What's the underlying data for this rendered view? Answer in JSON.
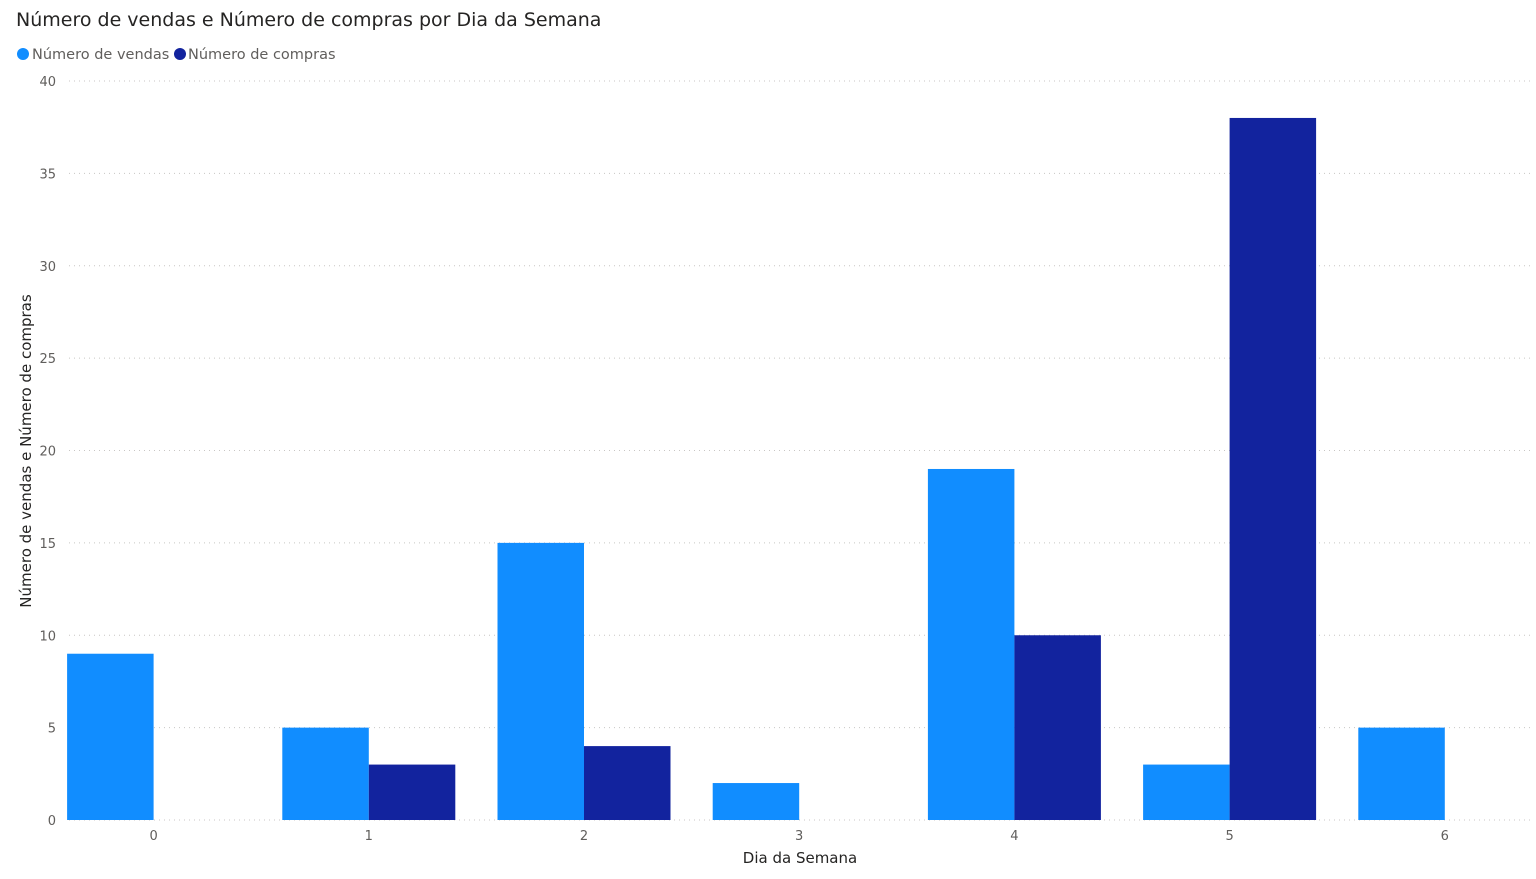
{
  "chart_data": {
    "type": "bar",
    "title": "Número de vendas e Número de compras por Dia da Semana",
    "xlabel": "Dia da Semana",
    "ylabel": "Número de vendas e Número de compras",
    "categories": [
      "0",
      "1",
      "2",
      "3",
      "4",
      "5",
      "6"
    ],
    "series": [
      {
        "name": "Número de vendas",
        "color": "#118dff",
        "values": [
          9,
          5,
          15,
          2,
          19,
          3,
          5
        ]
      },
      {
        "name": "Número de compras",
        "color": "#12239e",
        "values": [
          0,
          3,
          4,
          0,
          10,
          38,
          0
        ]
      }
    ],
    "ylim": [
      0,
      40
    ],
    "yticks": [
      0,
      5,
      10,
      15,
      20,
      25,
      30,
      35,
      40
    ],
    "grid": true,
    "legend_position": "top-left"
  }
}
